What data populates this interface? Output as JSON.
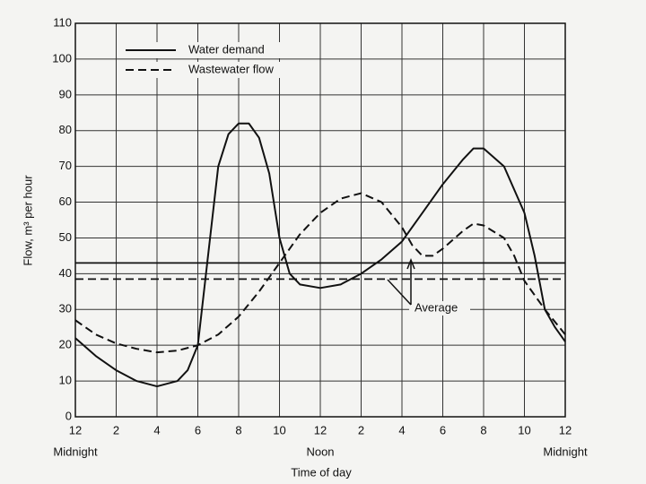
{
  "chart_data": {
    "type": "line",
    "xlabel": "Time of day",
    "ylabel": "Flow, m³ per hour",
    "xlim": [
      0,
      24
    ],
    "ylim": [
      0,
      110
    ],
    "xticks": [
      {
        "value": 0,
        "label": "12"
      },
      2,
      4,
      6,
      8,
      10,
      12,
      {
        "value": 14,
        "label": "2"
      },
      {
        "value": 16,
        "label": "4"
      },
      {
        "value": 18,
        "label": "6"
      },
      {
        "value": 20,
        "label": "8"
      },
      {
        "value": 22,
        "label": "10"
      },
      {
        "value": 24,
        "label": "12"
      }
    ],
    "yticks": [
      0,
      10,
      20,
      30,
      40,
      50,
      60,
      70,
      80,
      90,
      100,
      110
    ],
    "grid": true,
    "legend": "upper left",
    "period_labels": [
      {
        "x": 0,
        "label": "Midnight"
      },
      {
        "x": 12,
        "label": "Noon"
      },
      {
        "x": 24,
        "label": "Midnight"
      }
    ],
    "annotation": "Average",
    "series": [
      {
        "name": "Water demand",
        "color": "#111111",
        "dash": "solid",
        "average": 43,
        "x": [
          0,
          1,
          2,
          3,
          4,
          5,
          5.5,
          6,
          6.5,
          7,
          7.5,
          8,
          8.5,
          9,
          9.5,
          10,
          10.5,
          11,
          12,
          13,
          14,
          15,
          16,
          17,
          18,
          19,
          19.5,
          20,
          21,
          22,
          22.5,
          23,
          23.5,
          24
        ],
        "values": [
          22,
          17,
          13,
          10,
          8.5,
          10,
          13,
          20,
          45,
          70,
          79,
          82,
          82,
          78,
          68,
          50,
          40,
          37,
          36,
          37,
          40,
          44,
          49,
          57,
          65,
          72,
          75,
          75,
          70,
          57,
          45,
          30,
          25,
          21
        ]
      },
      {
        "name": "Wastewater flow",
        "color": "#111111",
        "dash": "dashed",
        "average": 38.5,
        "x": [
          0,
          1,
          2,
          3,
          4,
          5,
          6,
          7,
          8,
          9,
          10,
          11,
          12,
          13,
          14,
          15,
          16,
          16.5,
          17,
          17.5,
          18,
          19,
          19.5,
          20,
          21,
          21.5,
          22,
          23,
          24
        ],
        "values": [
          27,
          23,
          20.5,
          19,
          18,
          18.5,
          20,
          23,
          28,
          35,
          43,
          51,
          57,
          61,
          62.5,
          60,
          53,
          48,
          45,
          45,
          47,
          52,
          54,
          53.5,
          50,
          45,
          38,
          30,
          23
        ]
      }
    ]
  }
}
